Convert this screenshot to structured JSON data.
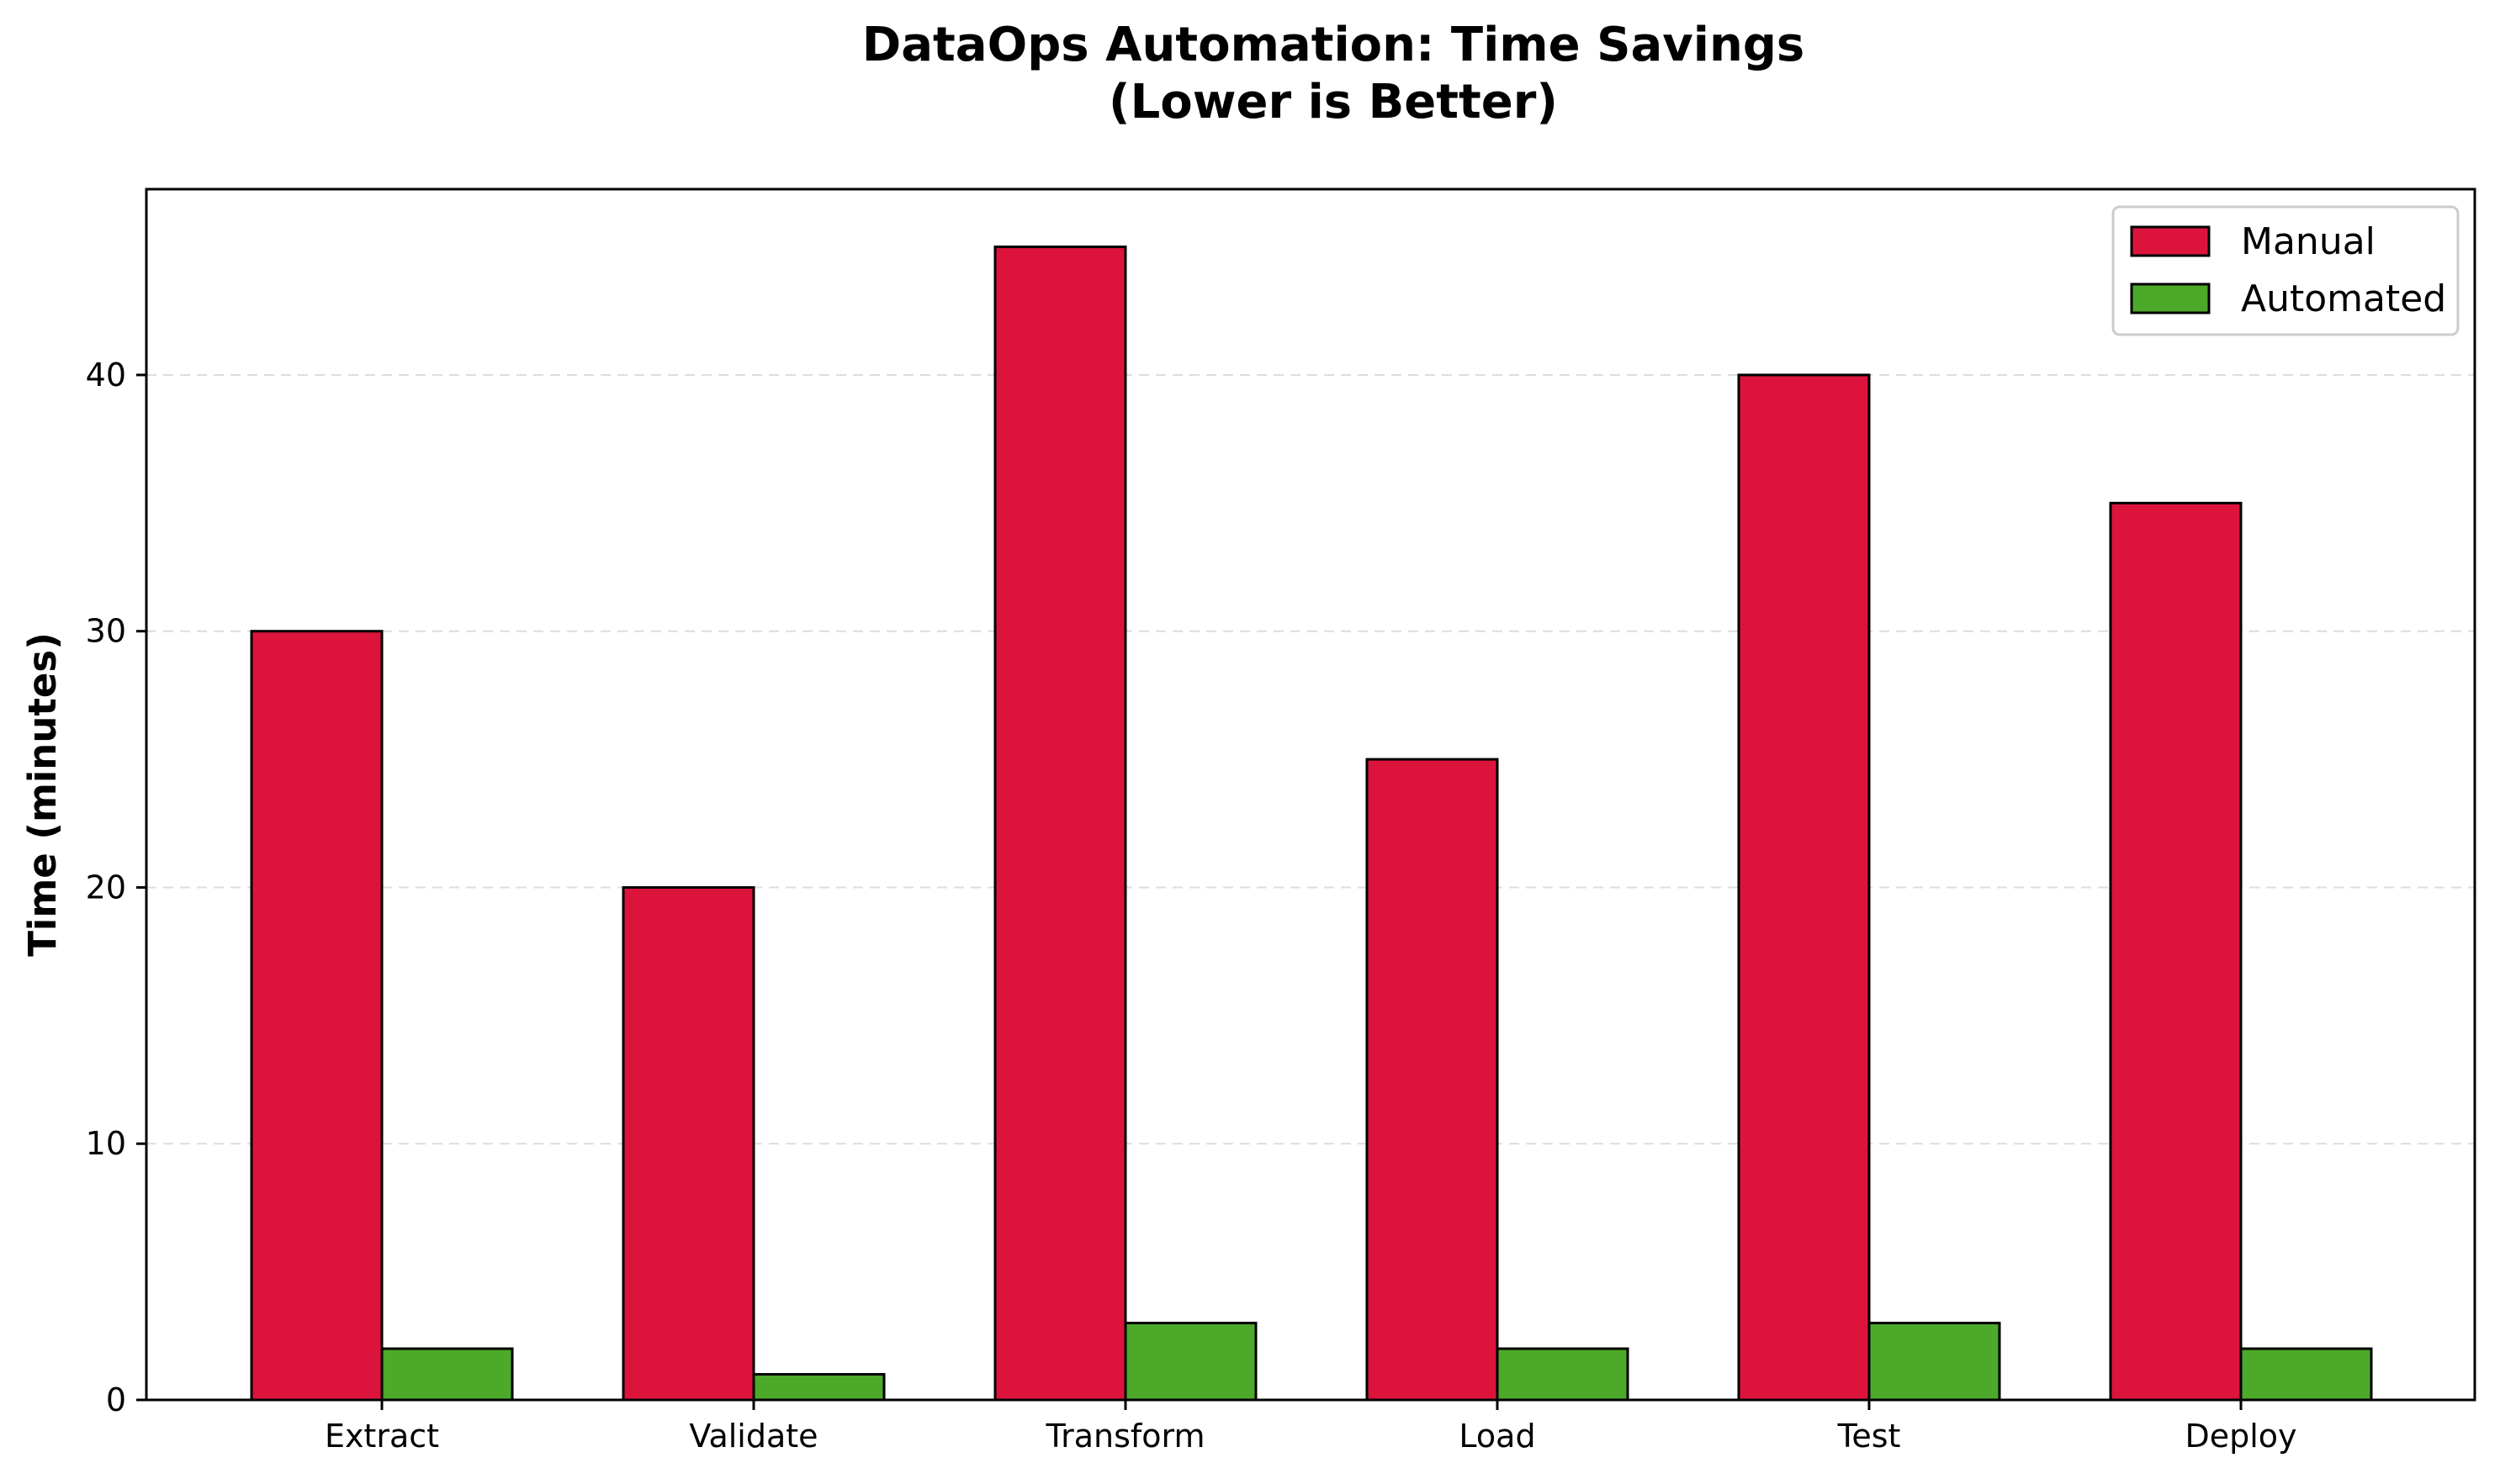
{
  "chart_data": {
    "type": "bar",
    "title": "DataOps Automation: Time Savings",
    "subtitle": "(Lower is Better)",
    "xlabel": "",
    "ylabel": "Time (minutes)",
    "categories": [
      "Extract",
      "Validate",
      "Transform",
      "Load",
      "Test",
      "Deploy"
    ],
    "series": [
      {
        "name": "Manual",
        "values": [
          30,
          20,
          45,
          25,
          40,
          35
        ],
        "color": "#DC143C"
      },
      {
        "name": "Automated",
        "values": [
          2,
          1,
          3,
          2,
          3,
          2
        ],
        "color": "#4CA92A"
      }
    ],
    "ylim": [
      0,
      47.25
    ],
    "yticks": [
      0,
      10,
      20,
      30,
      40
    ],
    "grid": "horizontal dashed",
    "legend_position": "top-right",
    "edge_color": "#000000",
    "grid_color": "#dddddd"
  }
}
